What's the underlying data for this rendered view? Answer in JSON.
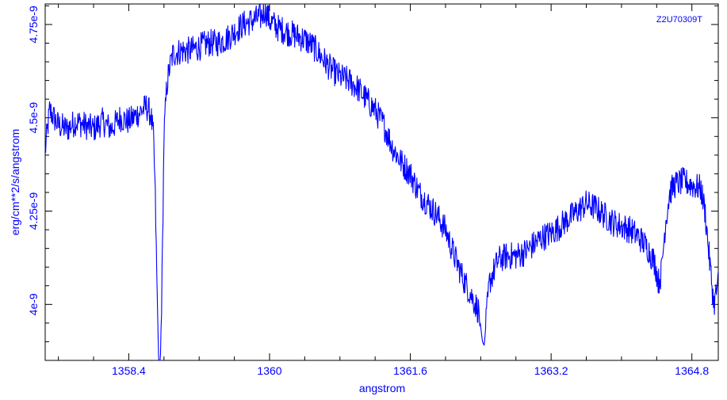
{
  "chart_data": {
    "type": "line",
    "title": "",
    "xlabel": "angstrom",
    "ylabel": "erg/cm**2/s/angstrom",
    "annotation": "Z2U70309T",
    "xlim": [
      1357.45,
      1365.1
    ],
    "ylim": [
      3.85e-09,
      4.805e-09
    ],
    "x_ticks": [
      {
        "value": 1358.4,
        "label": "1358.4"
      },
      {
        "value": 1360.0,
        "label": "1360"
      },
      {
        "value": 1361.6,
        "label": "1361.6"
      },
      {
        "value": 1363.2,
        "label": "1363.2"
      },
      {
        "value": 1364.8,
        "label": "1364.8"
      }
    ],
    "y_ticks": [
      {
        "value": 4e-09,
        "label": "4e-9"
      },
      {
        "value": 4.25e-09,
        "label": "4.25e-9"
      },
      {
        "value": 4.5e-09,
        "label": "4.5e-9"
      },
      {
        "value": 4.75e-09,
        "label": "4.75e-9"
      }
    ],
    "grid": false,
    "series": [
      {
        "color": "#0000ff",
        "points": [
          [
            1357.45,
            4.41e-09
          ],
          [
            1357.5,
            4.52e-09
          ],
          [
            1357.6,
            4.48e-09
          ],
          [
            1357.7,
            4.47e-09
          ],
          [
            1357.8,
            4.49e-09
          ],
          [
            1357.9,
            4.48e-09
          ],
          [
            1358.0,
            4.47e-09
          ],
          [
            1358.1,
            4.49e-09
          ],
          [
            1358.2,
            4.47e-09
          ],
          [
            1358.3,
            4.5e-09
          ],
          [
            1358.4,
            4.49e-09
          ],
          [
            1358.5,
            4.51e-09
          ],
          [
            1358.6,
            4.53e-09
          ],
          [
            1358.65,
            4.51e-09
          ],
          [
            1358.68,
            4.45e-09
          ],
          [
            1358.7,
            4.3e-09
          ],
          [
            1358.72,
            4.05e-09
          ],
          [
            1358.74,
            3.85e-09
          ],
          [
            1358.76,
            3.85e-09
          ],
          [
            1358.78,
            4.1e-09
          ],
          [
            1358.8,
            4.45e-09
          ],
          [
            1358.83,
            4.58e-09
          ],
          [
            1358.86,
            4.63e-09
          ],
          [
            1358.9,
            4.67e-09
          ],
          [
            1359.0,
            4.68e-09
          ],
          [
            1359.1,
            4.68e-09
          ],
          [
            1359.2,
            4.69e-09
          ],
          [
            1359.3,
            4.7e-09
          ],
          [
            1359.4,
            4.7e-09
          ],
          [
            1359.5,
            4.71e-09
          ],
          [
            1359.6,
            4.73e-09
          ],
          [
            1359.7,
            4.75e-09
          ],
          [
            1359.8,
            4.76e-09
          ],
          [
            1359.9,
            4.77e-09
          ],
          [
            1359.95,
            4.79e-09
          ],
          [
            1360.0,
            4.76e-09
          ],
          [
            1360.1,
            4.74e-09
          ],
          [
            1360.2,
            4.73e-09
          ],
          [
            1360.3,
            4.72e-09
          ],
          [
            1360.4,
            4.71e-09
          ],
          [
            1360.5,
            4.69e-09
          ],
          [
            1360.6,
            4.66e-09
          ],
          [
            1360.7,
            4.63e-09
          ],
          [
            1360.8,
            4.61e-09
          ],
          [
            1360.9,
            4.6e-09
          ],
          [
            1361.0,
            4.58e-09
          ],
          [
            1361.1,
            4.55e-09
          ],
          [
            1361.2,
            4.52e-09
          ],
          [
            1361.3,
            4.48e-09
          ],
          [
            1361.4,
            4.42e-09
          ],
          [
            1361.5,
            4.38e-09
          ],
          [
            1361.6,
            4.35e-09
          ],
          [
            1361.7,
            4.3e-09
          ],
          [
            1361.8,
            4.27e-09
          ],
          [
            1361.9,
            4.24e-09
          ],
          [
            1362.0,
            4.2e-09
          ],
          [
            1362.1,
            4.13e-09
          ],
          [
            1362.2,
            4.07e-09
          ],
          [
            1362.3,
            4.02e-09
          ],
          [
            1362.38,
            3.98e-09
          ],
          [
            1362.42,
            3.9e-09
          ],
          [
            1362.44,
            3.89e-09
          ],
          [
            1362.47,
            3.98e-09
          ],
          [
            1362.5,
            4.06e-09
          ],
          [
            1362.6,
            4.12e-09
          ],
          [
            1362.7,
            4.13e-09
          ],
          [
            1362.8,
            4.13e-09
          ],
          [
            1362.9,
            4.14e-09
          ],
          [
            1363.0,
            4.16e-09
          ],
          [
            1363.1,
            4.18e-09
          ],
          [
            1363.2,
            4.19e-09
          ],
          [
            1363.3,
            4.21e-09
          ],
          [
            1363.4,
            4.23e-09
          ],
          [
            1363.5,
            4.25e-09
          ],
          [
            1363.6,
            4.27e-09
          ],
          [
            1363.7,
            4.26e-09
          ],
          [
            1363.8,
            4.24e-09
          ],
          [
            1363.9,
            4.22e-09
          ],
          [
            1364.0,
            4.21e-09
          ],
          [
            1364.1,
            4.2e-09
          ],
          [
            1364.2,
            4.18e-09
          ],
          [
            1364.3,
            4.15e-09
          ],
          [
            1364.38,
            4.11e-09
          ],
          [
            1364.42,
            4.06e-09
          ],
          [
            1364.45,
            4.08e-09
          ],
          [
            1364.5,
            4.22e-09
          ],
          [
            1364.55,
            4.3e-09
          ],
          [
            1364.6,
            4.32e-09
          ],
          [
            1364.7,
            4.33e-09
          ],
          [
            1364.8,
            4.32e-09
          ],
          [
            1364.9,
            4.31e-09
          ],
          [
            1364.95,
            4.25e-09
          ],
          [
            1365.0,
            4.12e-09
          ],
          [
            1365.05,
            4e-09
          ],
          [
            1365.1,
            4.06e-09
          ]
        ]
      }
    ]
  }
}
